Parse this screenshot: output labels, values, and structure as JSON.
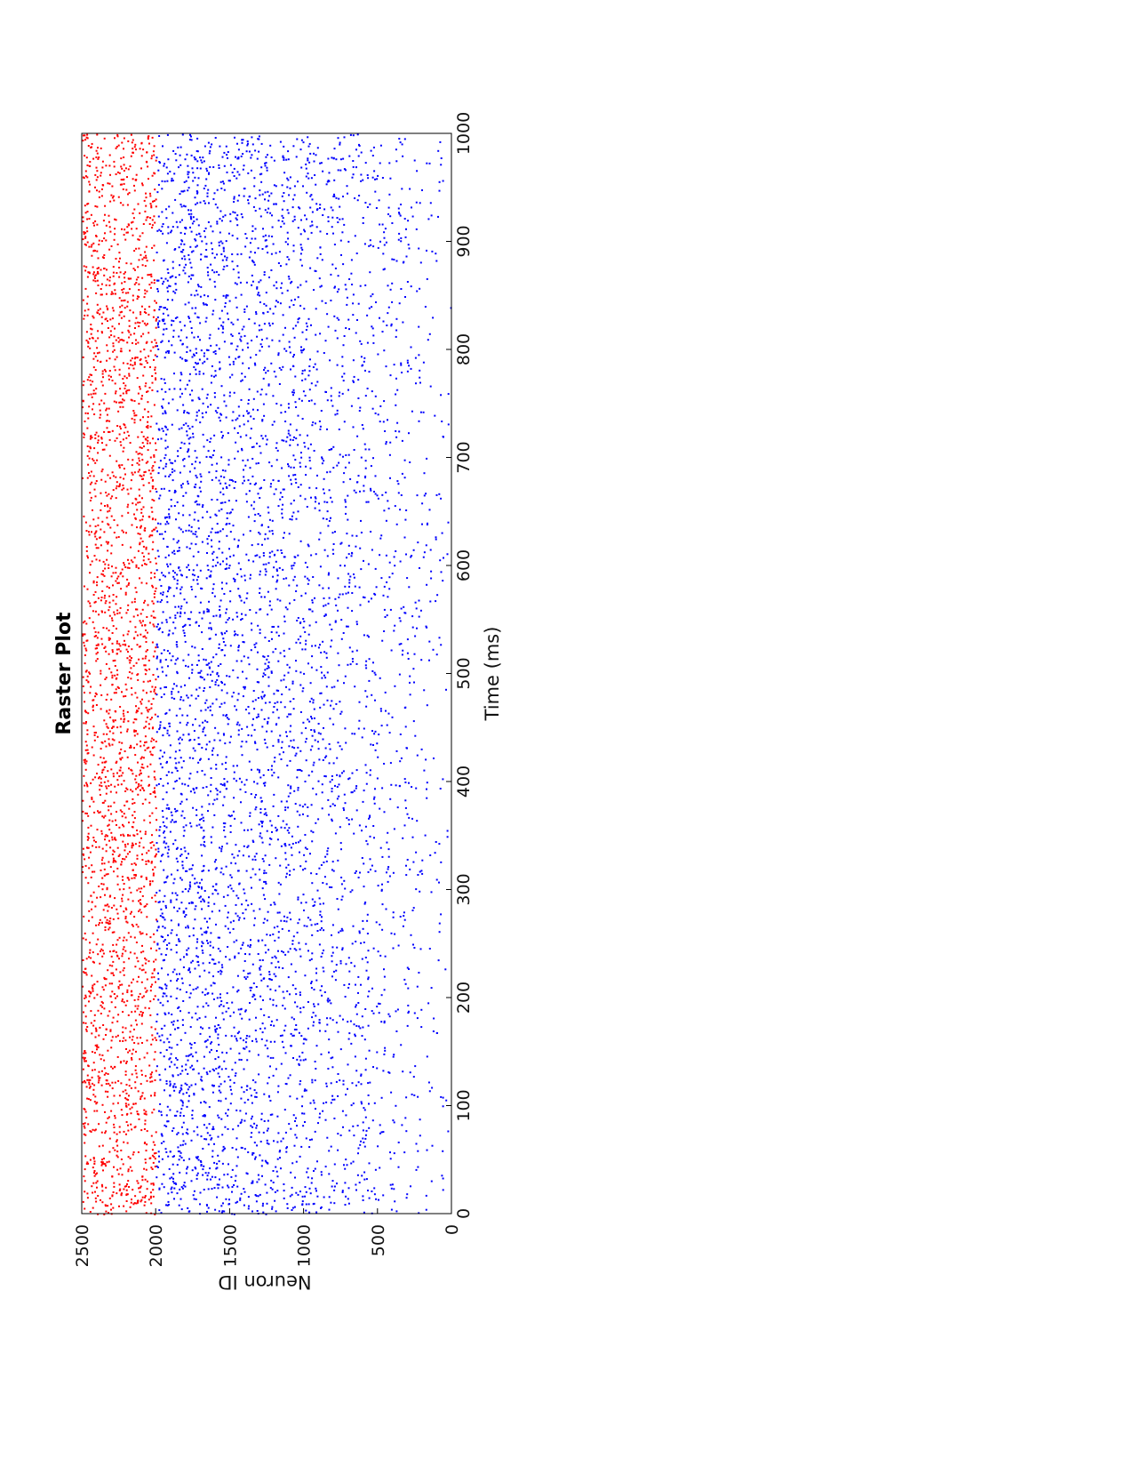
{
  "chart_data": {
    "type": "scatter",
    "title": "Raster Plot",
    "xlabel": "Time (ms)",
    "ylabel": "Neuron ID",
    "xlim": [
      0,
      1000
    ],
    "ylim": [
      0,
      2500
    ],
    "xticks": [
      0,
      100,
      200,
      300,
      400,
      500,
      600,
      700,
      800,
      900,
      1000
    ],
    "yticks": [
      0,
      500,
      1000,
      1500,
      2000,
      2500
    ],
    "orientation": "rotated-90-clockwise",
    "grid": false,
    "series": [
      {
        "color": "#0000ff",
        "neuron_range": [
          0,
          2000
        ],
        "marker": "dot",
        "points_per_neuron_note": ""
      },
      {
        "color": "#ff0000",
        "neuron_range": [
          2000,
          2500
        ],
        "marker": "dot"
      }
    ]
  }
}
